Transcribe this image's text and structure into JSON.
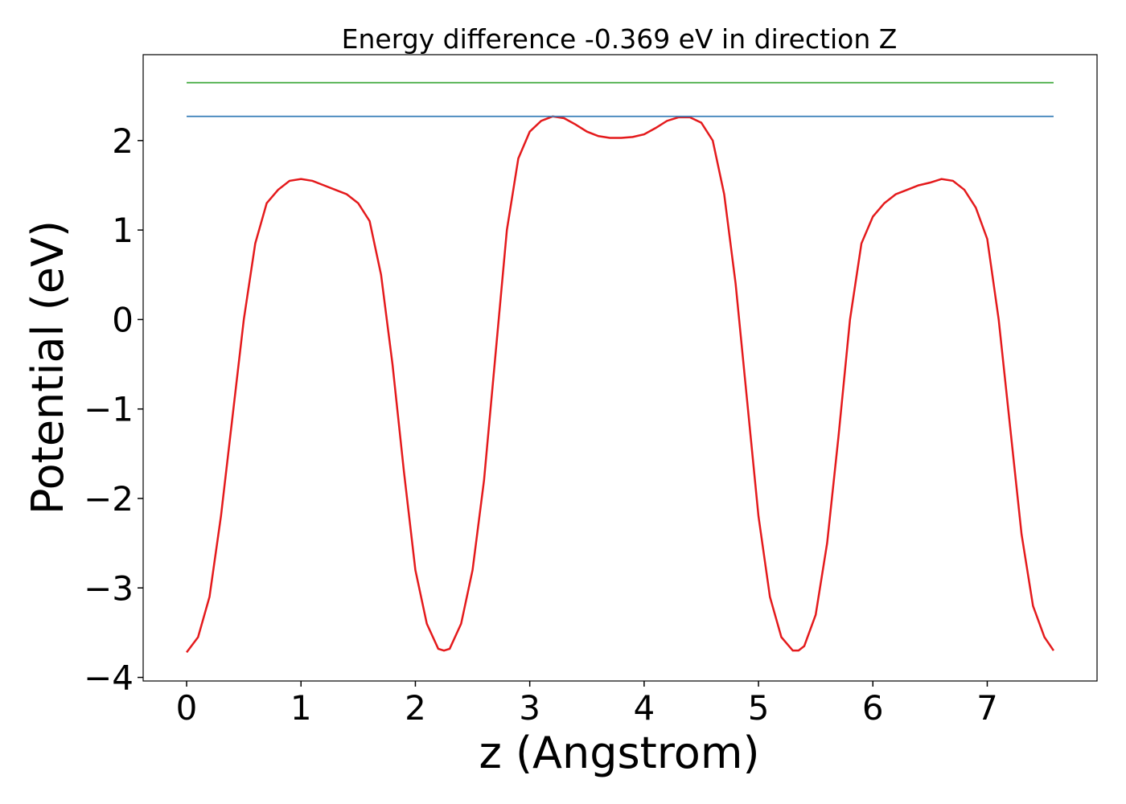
{
  "chart_data": {
    "type": "line",
    "title": "Energy difference -0.369 eV in direction Z",
    "x_label": "z (Angstrom)",
    "y_label": "Potential (eV)",
    "xlim": [
      -0.38,
      7.96
    ],
    "ylim": [
      -4.04,
      2.96
    ],
    "xticks": [
      0,
      1,
      2,
      3,
      4,
      5,
      6,
      7
    ],
    "yticks": [
      {
        "value": -4,
        "label": "−4"
      },
      {
        "value": -3,
        "label": "−3"
      },
      {
        "value": -2,
        "label": "−2"
      },
      {
        "value": -1,
        "label": "−1"
      },
      0,
      1,
      2
    ],
    "series": [
      {
        "color": "#e41a1c",
        "x": [
          0,
          0.1,
          0.2,
          0.3,
          0.4,
          0.5,
          0.6,
          0.7,
          0.8,
          0.9,
          1.0,
          1.1,
          1.2,
          1.3,
          1.4,
          1.5,
          1.6,
          1.7,
          1.8,
          1.9,
          2.0,
          2.1,
          2.2,
          2.25,
          2.3,
          2.4,
          2.5,
          2.6,
          2.7,
          2.8,
          2.9,
          3.0,
          3.1,
          3.2,
          3.3,
          3.4,
          3.5,
          3.6,
          3.7,
          3.8,
          3.9,
          4.0,
          4.1,
          4.2,
          4.3,
          4.4,
          4.5,
          4.6,
          4.7,
          4.8,
          4.9,
          5.0,
          5.1,
          5.2,
          5.3,
          5.35,
          5.4,
          5.5,
          5.6,
          5.7,
          5.8,
          5.9,
          6.0,
          6.1,
          6.2,
          6.3,
          6.4,
          6.5,
          6.6,
          6.7,
          6.8,
          6.9,
          7.0,
          7.1,
          7.2,
          7.3,
          7.4,
          7.5,
          7.58
        ],
        "values": [
          -3.72,
          -3.55,
          -3.1,
          -2.2,
          -1.1,
          0.0,
          0.85,
          1.3,
          1.45,
          1.55,
          1.57,
          1.55,
          1.5,
          1.45,
          1.4,
          1.3,
          1.1,
          0.5,
          -0.5,
          -1.7,
          -2.8,
          -3.4,
          -3.68,
          -3.7,
          -3.68,
          -3.4,
          -2.8,
          -1.8,
          -0.4,
          1.0,
          1.8,
          2.1,
          2.22,
          2.27,
          2.25,
          2.18,
          2.1,
          2.05,
          2.03,
          2.03,
          2.04,
          2.07,
          2.14,
          2.22,
          2.26,
          2.26,
          2.2,
          2.0,
          1.4,
          0.4,
          -0.9,
          -2.2,
          -3.1,
          -3.55,
          -3.7,
          -3.7,
          -3.65,
          -3.3,
          -2.5,
          -1.3,
          0.0,
          0.85,
          1.15,
          1.3,
          1.4,
          1.45,
          1.5,
          1.53,
          1.57,
          1.55,
          1.45,
          1.25,
          0.9,
          0.0,
          -1.2,
          -2.4,
          -3.2,
          -3.55,
          -3.7
        ]
      },
      {
        "color": "#377eb8",
        "x": [
          0,
          7.58
        ],
        "values": [
          2.27,
          2.27
        ]
      },
      {
        "color": "#4daf4a",
        "x": [
          0,
          7.58
        ],
        "values": [
          2.647,
          2.647
        ]
      }
    ]
  }
}
